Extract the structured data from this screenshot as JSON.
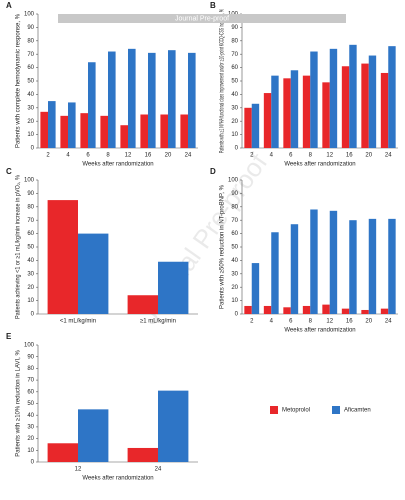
{
  "watermark": "Journal Pre-proof",
  "chart_data": [
    {
      "type": "bar",
      "label": "A",
      "ylabel": "Patients with complete hemodynamic response, %",
      "xlabel": "Weeks after randomization",
      "categories": [
        "2",
        "4",
        "6",
        "8",
        "12",
        "16",
        "20",
        "24"
      ],
      "series": [
        {
          "color": "#e8272a",
          "values": [
            27,
            24,
            26,
            24,
            17,
            25,
            25,
            25
          ]
        },
        {
          "color": "#2e75c6",
          "values": [
            35,
            34,
            64,
            72,
            74,
            71,
            73,
            71
          ]
        }
      ],
      "ylim": [
        0,
        100
      ],
      "yticks": [
        0,
        10,
        20,
        30,
        40,
        50,
        60,
        70,
        80,
        90,
        100
      ]
    },
    {
      "type": "bar",
      "label": "B",
      "ylabel": "Patients with ≥1 NYHA functional class improvement and/or ≥10-point KCCQ-CSS increase, %",
      "xlabel": "Weeks after randomization",
      "categories": [
        "2",
        "4",
        "6",
        "8",
        "12",
        "16",
        "20",
        "24"
      ],
      "series": [
        {
          "color": "#e8272a",
          "values": [
            30,
            41,
            52,
            54,
            49,
            61,
            63,
            56
          ]
        },
        {
          "color": "#2e75c6",
          "values": [
            33,
            54,
            58,
            72,
            74,
            77,
            69,
            76
          ]
        }
      ],
      "ylim": [
        0,
        100
      ],
      "yticks": [
        0,
        10,
        20,
        30,
        40,
        50,
        60,
        70,
        80,
        90,
        100
      ]
    },
    {
      "type": "bar",
      "label": "C",
      "ylabel": "Patients achieving <1 or ≥1 mL/kg/min increase in pVO₂, %",
      "categories": [
        "<1 mL/kg/min",
        "≥1 mL/kg/min"
      ],
      "series": [
        {
          "color": "#e8272a",
          "values": [
            85,
            14
          ]
        },
        {
          "color": "#2e75c6",
          "values": [
            60,
            39
          ]
        }
      ],
      "ylim": [
        0,
        100
      ],
      "yticks": [
        0,
        10,
        20,
        30,
        40,
        50,
        60,
        70,
        80,
        90,
        100
      ]
    },
    {
      "type": "bar",
      "label": "D",
      "ylabel": "Patients with ≥50% reduction in NT-proBNP, %",
      "xlabel": "Weeks after randomization",
      "categories": [
        "2",
        "4",
        "6",
        "8",
        "12",
        "16",
        "20",
        "24"
      ],
      "series": [
        {
          "color": "#e8272a",
          "values": [
            6,
            6,
            5,
            6,
            7,
            4,
            3,
            4
          ]
        },
        {
          "color": "#2e75c6",
          "values": [
            38,
            61,
            67,
            78,
            77,
            70,
            71,
            71
          ]
        }
      ],
      "ylim": [
        0,
        100
      ],
      "yticks": [
        0,
        10,
        20,
        30,
        40,
        50,
        60,
        70,
        80,
        90,
        100
      ]
    },
    {
      "type": "bar",
      "label": "E",
      "ylabel": "Patients with ≥10% reduction in LAVI, %",
      "xlabel": "Weeks after randomization",
      "categories": [
        "12",
        "24"
      ],
      "series": [
        {
          "name": "Metoprolol",
          "color": "#e8272a",
          "values": [
            16,
            12
          ]
        },
        {
          "name": "Aficamten",
          "color": "#2e75c6",
          "values": [
            45,
            61
          ]
        }
      ],
      "ylim": [
        0,
        100
      ],
      "yticks": [
        0,
        10,
        20,
        30,
        40,
        50,
        60,
        70,
        80,
        90,
        100
      ],
      "legend": "right"
    }
  ]
}
